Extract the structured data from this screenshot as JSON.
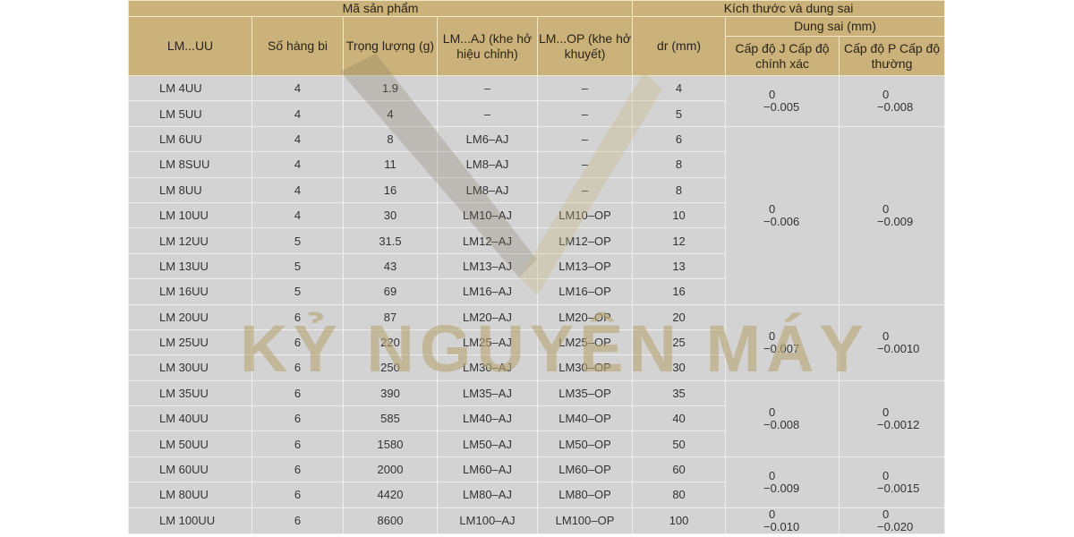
{
  "header": {
    "group_product": "Mã sản phẩm",
    "group_size": "Kích thước và dung sai",
    "col_code": "LM...UU",
    "col_rows": "Số hàng bi",
    "col_weight": "Trọng lượng (g)",
    "col_aj": "LM...AJ (khe hở hiệu chỉnh)",
    "col_op": "LM...OP (khe hở khuyết)",
    "col_dr": "dr (mm)",
    "col_tol": "Dung sai (mm)",
    "col_j": "Cấp độ J Cấp độ chính xác",
    "col_p": "Cấp độ P Cấp độ thường"
  },
  "rows": [
    [
      "LM 4UU",
      "4",
      "1.9",
      "–",
      "–",
      "4"
    ],
    [
      "LM 5UU",
      "4",
      "4",
      "–",
      "–",
      "5"
    ],
    [
      "LM 6UU",
      "4",
      "8",
      "LM6–AJ",
      "–",
      "6"
    ],
    [
      "LM 8SUU",
      "4",
      "11",
      "LM8–AJ",
      "–",
      "8"
    ],
    [
      "LM 8UU",
      "4",
      "16",
      "LM8–AJ",
      "–",
      "8"
    ],
    [
      "LM 10UU",
      "4",
      "30",
      "LM10–AJ",
      "LM10–OP",
      "10"
    ],
    [
      "LM 12UU",
      "5",
      "31.5",
      "LM12–AJ",
      "LM12–OP",
      "12"
    ],
    [
      "LM 13UU",
      "5",
      "43",
      "LM13–AJ",
      "LM13–OP",
      "13"
    ],
    [
      "LM 16UU",
      "5",
      "69",
      "LM16–AJ",
      "LM16–OP",
      "16"
    ],
    [
      "LM 20UU",
      "6",
      "87",
      "LM20–AJ",
      "LM20–OP",
      "20"
    ],
    [
      "LM 25UU",
      "6",
      "220",
      "LM25–AJ",
      "LM25–OP",
      "25"
    ],
    [
      "LM 30UU",
      "6",
      "250",
      "LM30–AJ",
      "LM30–OP",
      "30"
    ],
    [
      "LM 35UU",
      "6",
      "390",
      "LM35–AJ",
      "LM35–OP",
      "35"
    ],
    [
      "LM 40UU",
      "6",
      "585",
      "LM40–AJ",
      "LM40–OP",
      "40"
    ],
    [
      "LM 50UU",
      "6",
      "1580",
      "LM50–AJ",
      "LM50–OP",
      "50"
    ],
    [
      "LM 60UU",
      "6",
      "2000",
      "LM60–AJ",
      "LM60–OP",
      "60"
    ],
    [
      "LM 80UU",
      "6",
      "4420",
      "LM80–AJ",
      "LM80–OP",
      "80"
    ],
    [
      "LM 100UU",
      "6",
      "8600",
      "LM100–AJ",
      "LM100–OP",
      "100"
    ]
  ],
  "tolerances": [
    {
      "span": 2,
      "j_upper": "0",
      "j_lower": "−0.005",
      "p_upper": "0",
      "p_lower": "−0.008"
    },
    {
      "span": 7,
      "j_upper": "0",
      "j_lower": "−0.006",
      "p_upper": "0",
      "p_lower": "−0.009"
    },
    {
      "span": 3,
      "j_upper": "0",
      "j_lower": "−0.007",
      "p_upper": "0",
      "p_lower": "−0.0010"
    },
    {
      "span": 3,
      "j_upper": "0",
      "j_lower": "−0.008",
      "p_upper": "0",
      "p_lower": "−0.0012"
    },
    {
      "span": 2,
      "j_upper": "0",
      "j_lower": "−0.009",
      "p_upper": "0",
      "p_lower": "−0.0015"
    },
    {
      "span": 1,
      "j_upper": "0",
      "j_lower": "−0.010",
      "p_upper": "0",
      "p_lower": "−0.020"
    }
  ],
  "watermark": "KỶ NGUYÊN MÁY"
}
